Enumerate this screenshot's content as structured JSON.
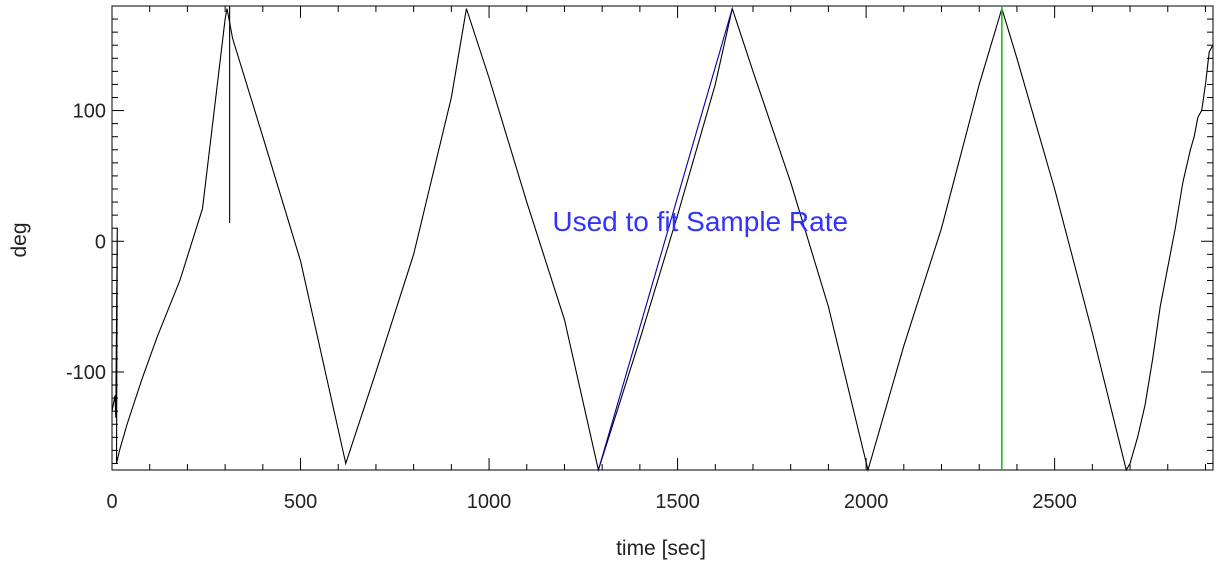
{
  "chart_data": {
    "type": "line",
    "xlabel": "time [sec]",
    "ylabel": "deg",
    "xlim": [
      0,
      2920
    ],
    "ylim": [
      -175,
      180
    ],
    "xticks": [
      0,
      500,
      1000,
      1500,
      2000,
      2500
    ],
    "xtick_labels": [
      "0",
      "500",
      "1000",
      "1500",
      "2000",
      "2500"
    ],
    "yticks": [
      -100,
      0,
      100
    ],
    "ytick_labels": [
      "-100",
      "0",
      "100"
    ],
    "grid": false,
    "legend": "none",
    "series": [
      {
        "color": "#000000",
        "x": [
          0,
          8,
          10,
          14,
          12,
          20,
          40,
          80,
          120,
          180,
          240,
          300,
          305,
          320,
          400,
          500,
          620,
          700,
          800,
          900,
          940,
          1000,
          1100,
          1200,
          1290,
          1400,
          1500,
          1600,
          1645,
          1700,
          1800,
          1900,
          2005,
          2100,
          2200,
          2300,
          2360,
          2400,
          2500,
          2600,
          2690,
          2700,
          2720,
          2740,
          2760,
          2780,
          2800,
          2820,
          2840,
          2860,
          2870,
          2880,
          2890,
          2900,
          2910,
          2920
        ],
        "y": [
          -130,
          -118,
          -135,
          10,
          -170,
          -160,
          -140,
          -105,
          -73,
          -30,
          25,
          170,
          178,
          155,
          80,
          -15,
          -170,
          -100,
          -10,
          110,
          178,
          125,
          30,
          -60,
          -175,
          -75,
          20,
          120,
          178,
          130,
          45,
          -50,
          -175,
          -80,
          10,
          120,
          178,
          140,
          40,
          -70,
          -175,
          -170,
          -150,
          -125,
          -90,
          -50,
          -20,
          10,
          45,
          70,
          80,
          95,
          100,
          120,
          145,
          150
        ]
      },
      {
        "color": "#000000",
        "x": [
          312,
          312
        ],
        "y": [
          14,
          180
        ]
      },
      {
        "color": "#0000aa",
        "x": [
          1290,
          1645
        ],
        "y": [
          -175,
          178
        ]
      },
      {
        "color": "#22bb22",
        "x": [
          2360,
          2360
        ],
        "y": [
          -175,
          180
        ]
      }
    ],
    "annotations": [
      {
        "text": "Used to fit Sample Rate",
        "x": 1560,
        "y": 8,
        "color": "#3333ff"
      }
    ]
  }
}
